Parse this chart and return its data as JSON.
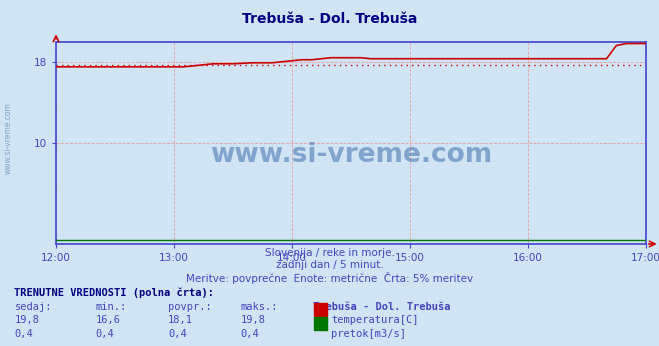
{
  "title": "Trebuša - Dol. Trebuša",
  "title_color": "#000080",
  "bg_color": "#d0e4f4",
  "plot_bg_color": "#d0e4f4",
  "x_start": 0,
  "x_end": 300,
  "x_ticks": [
    0,
    60,
    120,
    180,
    240,
    300
  ],
  "x_tick_labels": [
    "12:00",
    "13:00",
    "14:00",
    "15:00",
    "16:00",
    "17:00"
  ],
  "y_min": 0,
  "y_max": 20,
  "y_ticks": [
    10,
    18
  ],
  "grid_color": "#e8a0a0",
  "spine_color": "#4444cc",
  "temp_color": "#cc0000",
  "flow_color": "#007700",
  "avg_line_color": "#cc0000",
  "avg_value": 17.7,
  "subtitle1": "Slovenija / reke in morje.",
  "subtitle2": "zadnji dan / 5 minut.",
  "subtitle3": "Meritve: povprečne  Enote: metrične  Črta: 5% meritev",
  "subtitle_color": "#4444bb",
  "tick_color": "#4444bb",
  "watermark": "www.si-vreme.com",
  "watermark_color": "#3366aa",
  "table_header": "TRENUTNE VREDNOSTI (polna črta):",
  "col_headers": [
    "sedaj:",
    "min.:",
    "povpr.:",
    "maks.:",
    "Trebuša - Dol. Trebuša"
  ],
  "row1_vals": [
    "19,8",
    "16,6",
    "18,1",
    "19,8"
  ],
  "row1_label": "temperatura[C]",
  "row1_color": "#cc0000",
  "row2_vals": [
    "0,4",
    "0,4",
    "0,4",
    "0,4"
  ],
  "row2_label": "pretok[m3/s]",
  "row2_color": "#007700",
  "temp_data_x": [
    0,
    10,
    20,
    30,
    40,
    50,
    60,
    65,
    70,
    75,
    80,
    90,
    100,
    110,
    115,
    120,
    125,
    130,
    135,
    140,
    145,
    150,
    155,
    160,
    165,
    170,
    175,
    180,
    185,
    190,
    200,
    210,
    220,
    230,
    240,
    250,
    260,
    270,
    280,
    285,
    290,
    295,
    300
  ],
  "temp_data_y": [
    17.5,
    17.5,
    17.5,
    17.5,
    17.5,
    17.5,
    17.5,
    17.5,
    17.6,
    17.7,
    17.8,
    17.8,
    17.9,
    17.9,
    18.0,
    18.1,
    18.2,
    18.2,
    18.3,
    18.4,
    18.4,
    18.4,
    18.4,
    18.3,
    18.3,
    18.3,
    18.3,
    18.3,
    18.3,
    18.3,
    18.3,
    18.3,
    18.3,
    18.3,
    18.3,
    18.3,
    18.3,
    18.3,
    18.3,
    19.6,
    19.8,
    19.8,
    19.8
  ],
  "flow_data_x": [
    0,
    300
  ],
  "flow_data_y": [
    0.4,
    0.4
  ],
  "side_watermark": "www.si-vreme.com"
}
